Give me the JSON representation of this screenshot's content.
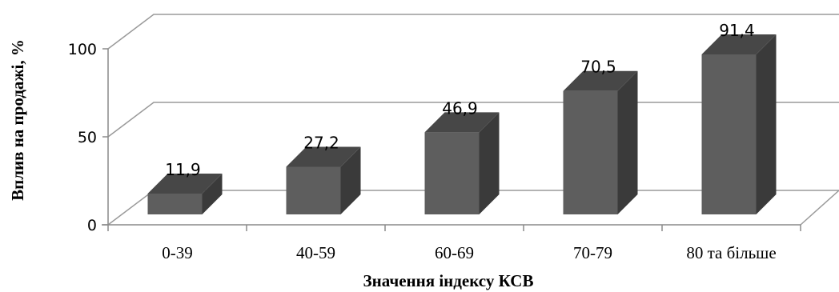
{
  "chart_data": {
    "type": "bar",
    "categories": [
      "0-39",
      "40-59",
      "60-69",
      "70-79",
      "80 та більше"
    ],
    "values": [
      11.9,
      27.2,
      46.9,
      70.5,
      91.4
    ],
    "data_labels": [
      "11,9",
      "27,2",
      "46,9",
      "70,5",
      "91,4"
    ],
    "y_ticks": [
      "0",
      "50",
      "100"
    ],
    "ylim": [
      0,
      100
    ],
    "xlabel": "Значення індексу КСВ",
    "ylabel": "Вплив на продажі, %",
    "grid": true,
    "style": "3d",
    "colors": {
      "bar_front": "#5e5e5e",
      "bar_side": "#3a3a3a",
      "bar_top": "#474747",
      "grid": "#9a9a9a"
    }
  }
}
